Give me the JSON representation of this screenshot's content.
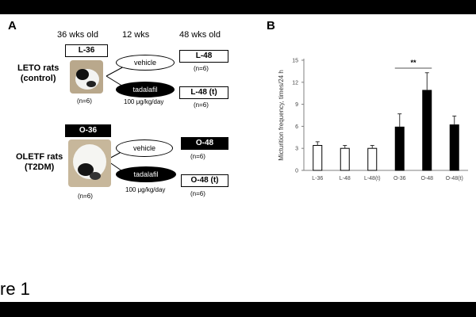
{
  "panel_a": {
    "letter": "A",
    "headers": [
      "36 wks old",
      "12 wks",
      "48 wks old"
    ],
    "leto": {
      "group_line1": "LETO rats",
      "group_line2": "(control)",
      "start_box": "L-36",
      "n_start": "(n=6)",
      "vehicle_label": "vehicle",
      "tadalafil_label": "tadalafil",
      "dose": "100 μg/kg/day",
      "end_vehicle_box": "L-48",
      "n_vehicle": "(n=6)",
      "end_tadalafil_box": "L-48 (t)",
      "n_tadalafil": "(n=6)"
    },
    "oletf": {
      "group_line1": "OLETF rats",
      "group_line2": "(T2DM)",
      "start_box": "O-36",
      "n_start": "(n=6)",
      "vehicle_label": "vehicle",
      "tadalafil_label": "tadalafil",
      "dose": "100 μg/kg/day",
      "end_vehicle_box": "O-48",
      "n_vehicle": "(n=6)",
      "end_tadalafil_box": "O-48 (t)",
      "n_tadalafil": "(n=6)"
    }
  },
  "panel_b": {
    "letter": "B"
  },
  "chart_data": {
    "type": "bar",
    "categories": [
      "L-36",
      "L-48",
      "L-48(t)",
      "O-36",
      "O-48",
      "O-48(t)"
    ],
    "values": [
      3.4,
      3.0,
      3.0,
      5.9,
      10.9,
      6.2
    ],
    "errors": [
      0.5,
      0.4,
      0.4,
      1.8,
      2.4,
      1.2
    ],
    "bar_colors": [
      "#ffffff",
      "#ffffff",
      "#ffffff",
      "#000000",
      "#000000",
      "#000000"
    ],
    "ylabel": "Micturition frequency,  times/24 h",
    "ylim": [
      0,
      15
    ],
    "yticks": [
      0,
      3,
      6,
      9,
      12,
      15
    ],
    "significance": {
      "label": "**",
      "between": [
        "O-36",
        "O-48"
      ]
    }
  },
  "caption": "re 1"
}
